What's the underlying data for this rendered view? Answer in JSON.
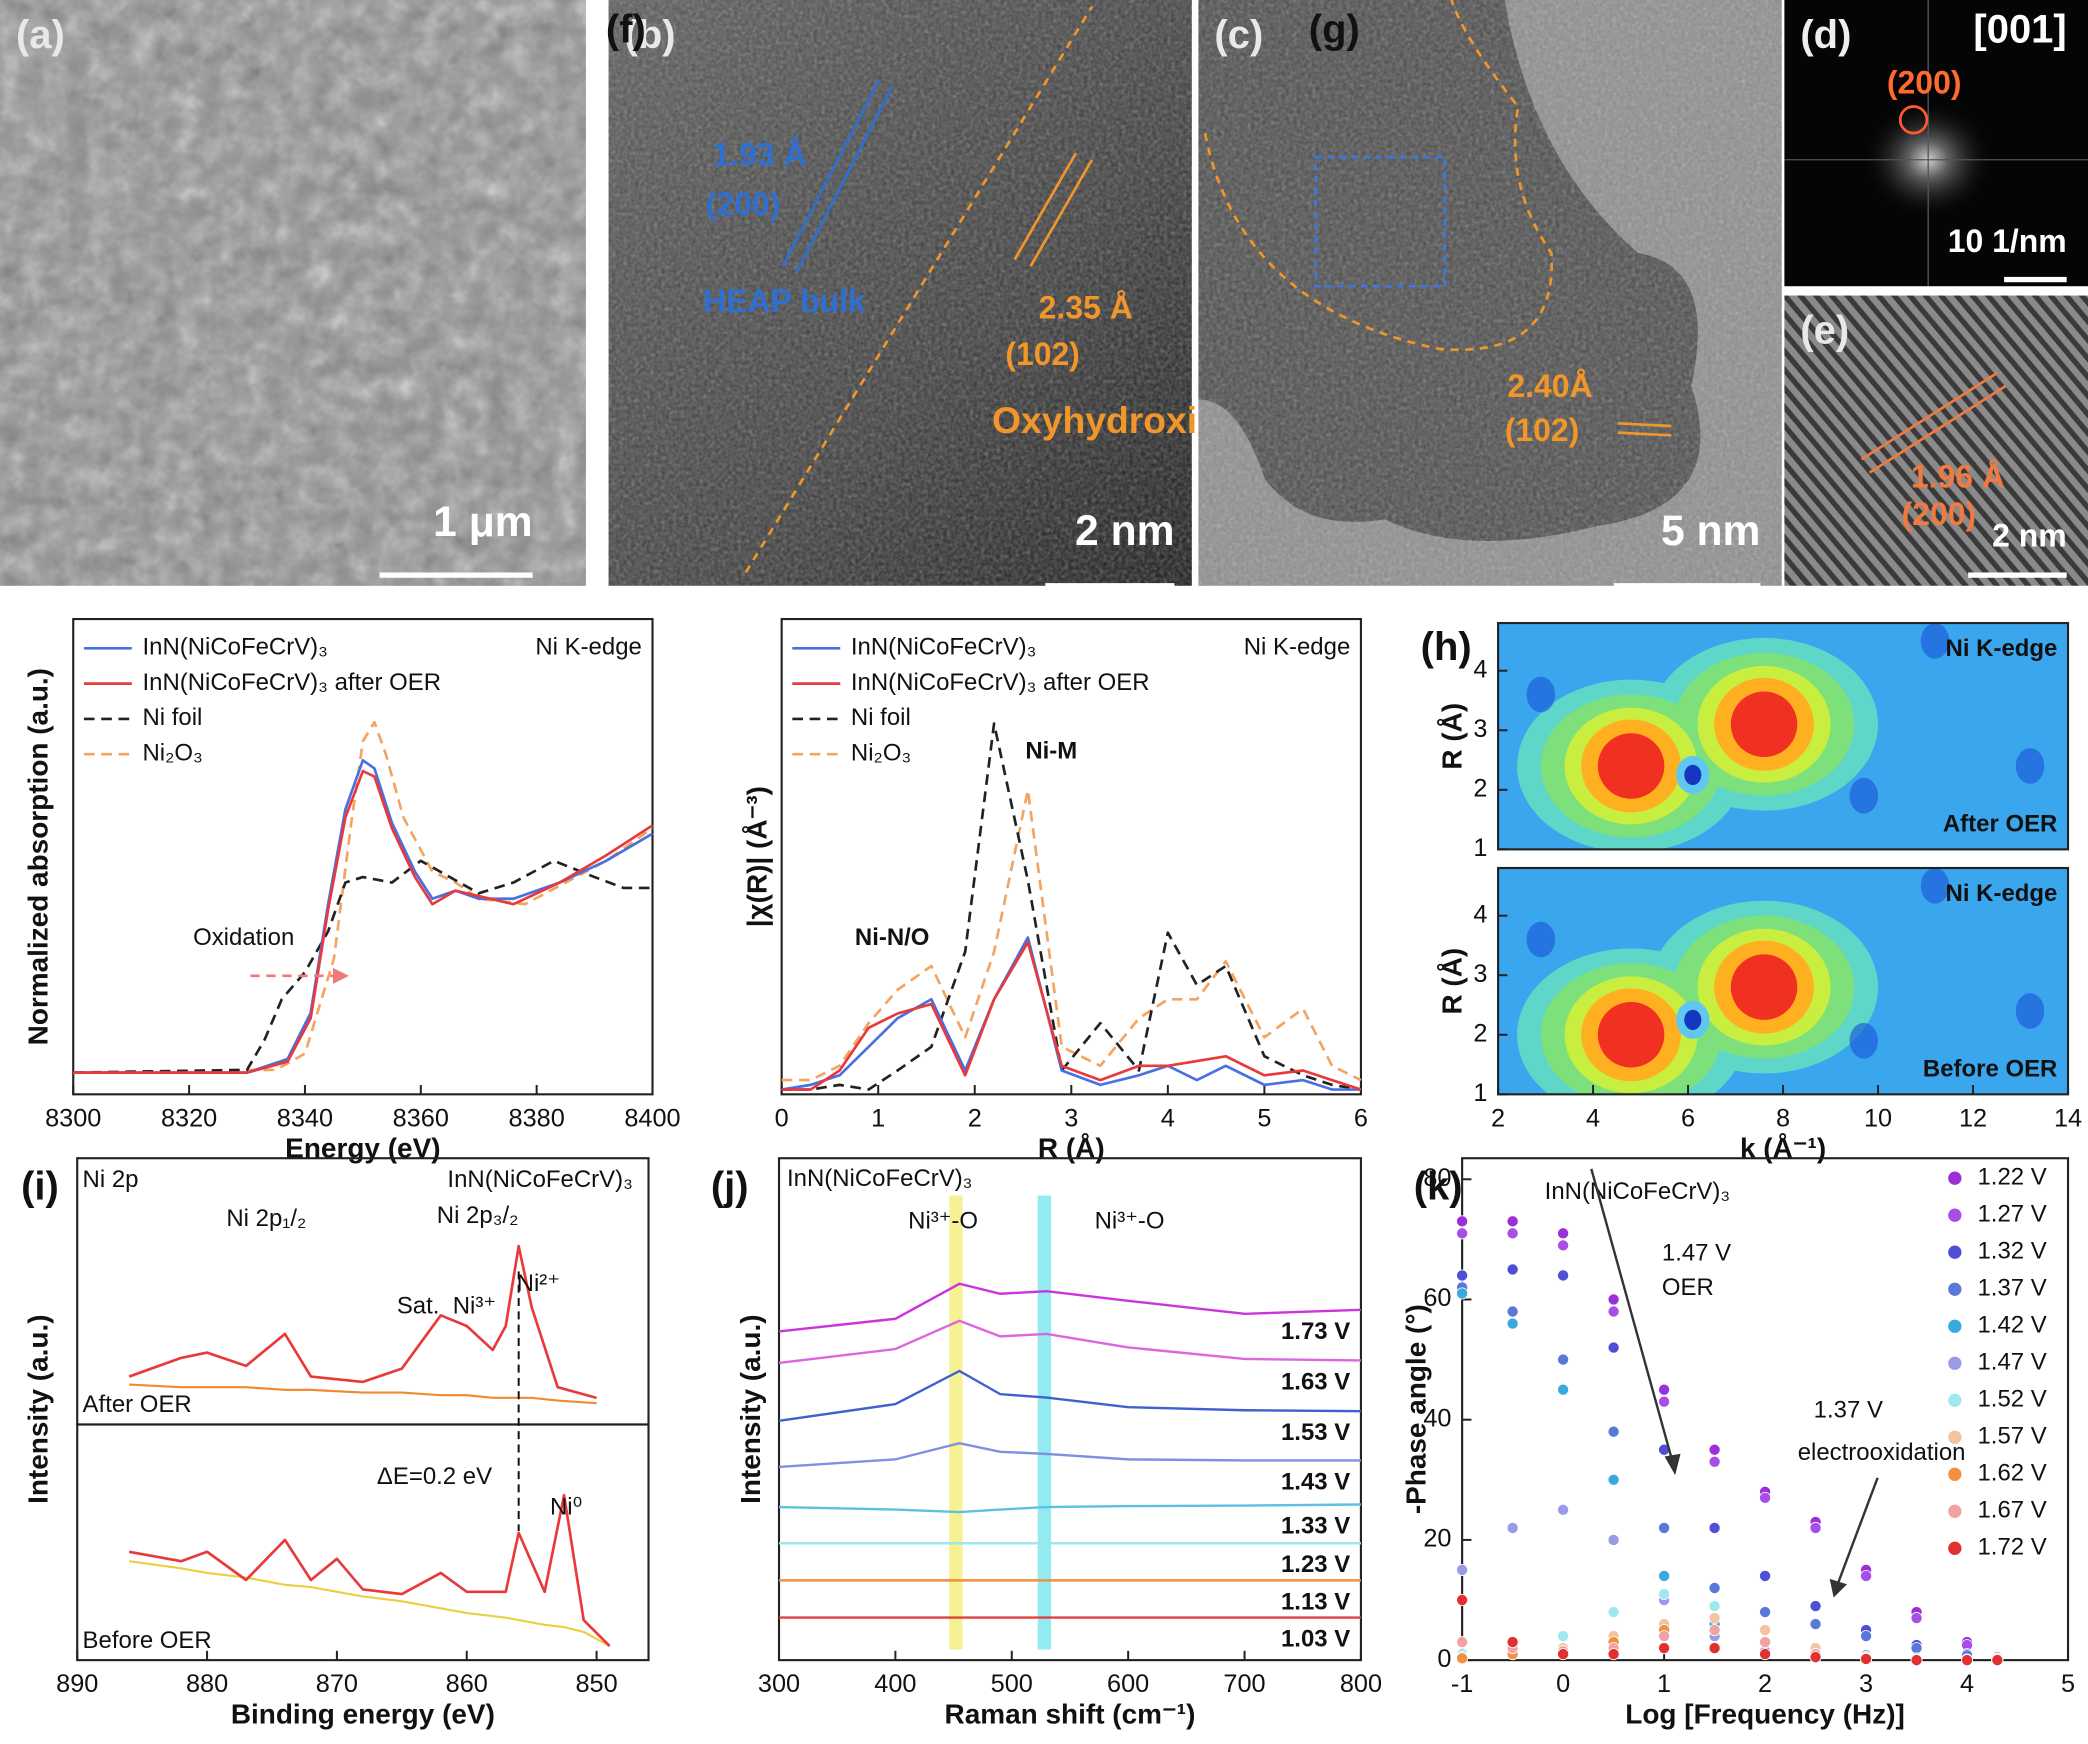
{
  "images": [
    {
      "label": "(a)",
      "scale_bar": "1 μm",
      "annotations": []
    },
    {
      "label": "(b)",
      "scale_bar": "2 nm",
      "annotations": [
        "1.93 Å",
        "(200)",
        "HEAP bulk",
        "2.35 Å",
        "(102)",
        "Oxyhydroxide"
      ]
    },
    {
      "label": "(c)",
      "scale_bar": "5 nm",
      "annotations": [
        "2.40Å",
        "(102)"
      ]
    },
    {
      "label": "(d)",
      "scale_bar": "10 1/nm",
      "annotations": [
        "[001]",
        "(200)"
      ]
    },
    {
      "label": "(e)",
      "scale_bar": "2 nm",
      "annotations": [
        "1.96 Å",
        "(200)"
      ]
    }
  ],
  "chart_data": [
    {
      "type": "line",
      "label": "(f)",
      "xlabel": "Energy (eV)",
      "ylabel": "Normalized absorption (a.u.)",
      "xlim": [
        8300,
        8400
      ],
      "xticks": [
        8300,
        8320,
        8340,
        8360,
        8380,
        8400
      ],
      "ylim": [
        0,
        1.75
      ],
      "annotations": [
        "Ni K-edge",
        "Oxidation"
      ],
      "series": [
        {
          "name": "InN(NiCoFeCrV)₃",
          "color": "#4a6fe3",
          "dashed": false,
          "x": [
            8300,
            8330,
            8337,
            8341,
            8344,
            8347,
            8350,
            8352,
            8355,
            8359,
            8362,
            8366,
            8370,
            8376,
            8384,
            8392,
            8400
          ],
          "values": [
            0.08,
            0.08,
            0.13,
            0.3,
            0.7,
            1.05,
            1.23,
            1.2,
            1.0,
            0.82,
            0.72,
            0.75,
            0.72,
            0.72,
            0.78,
            0.86,
            0.96
          ]
        },
        {
          "name": "InN(NiCoFeCrV)₃ after OER",
          "color": "#e83a3a",
          "dashed": false,
          "x": [
            8300,
            8330,
            8337,
            8341,
            8344,
            8347,
            8350,
            8352,
            8355,
            8359,
            8362,
            8366,
            8370,
            8376,
            8384,
            8392,
            8400
          ],
          "values": [
            0.08,
            0.08,
            0.12,
            0.28,
            0.68,
            1.02,
            1.19,
            1.17,
            0.98,
            0.8,
            0.7,
            0.75,
            0.73,
            0.7,
            0.78,
            0.88,
            0.99
          ]
        },
        {
          "name": "Ni foil",
          "color": "#222222",
          "dashed": true,
          "x": [
            8300,
            8330,
            8333,
            8336,
            8340,
            8344,
            8347,
            8350,
            8355,
            8360,
            8365,
            8370,
            8376,
            8383,
            8390,
            8395,
            8400
          ],
          "values": [
            0.08,
            0.09,
            0.2,
            0.35,
            0.45,
            0.6,
            0.78,
            0.8,
            0.78,
            0.86,
            0.8,
            0.74,
            0.78,
            0.86,
            0.8,
            0.76,
            0.76
          ]
        },
        {
          "name": "Ni₂O₃",
          "color": "#f4a460",
          "dashed": true,
          "x": [
            8300,
            8335,
            8340,
            8345,
            8348,
            8350,
            8352,
            8354,
            8357,
            8362,
            8366,
            8370,
            8378,
            8385,
            8392,
            8400
          ],
          "values": [
            0.08,
            0.09,
            0.15,
            0.5,
            1.0,
            1.3,
            1.37,
            1.25,
            1.02,
            0.82,
            0.78,
            0.72,
            0.7,
            0.78,
            0.86,
            0.98
          ]
        }
      ]
    },
    {
      "type": "line",
      "label": "(g)",
      "xlabel": "R (Å)",
      "ylabel": "|χ(R)| (Å⁻³)",
      "xlim": [
        0,
        6
      ],
      "xticks": [
        0,
        1,
        2,
        3,
        4,
        5,
        6
      ],
      "ylim": [
        0,
        1
      ],
      "annotations": [
        "Ni K-edge",
        "Ni-M",
        "Ni-N/O"
      ],
      "x": [
        0,
        0.3,
        0.6,
        0.9,
        1.2,
        1.55,
        1.9,
        2.2,
        2.55,
        2.9,
        3.3,
        3.7,
        4.0,
        4.3,
        4.6,
        5.0,
        5.4,
        5.7,
        6.0
      ],
      "series": [
        {
          "name": "InN(NiCoFeCrV)₃",
          "color": "#4a6fe3",
          "dashed": false,
          "values": [
            0.01,
            0.02,
            0.04,
            0.1,
            0.16,
            0.2,
            0.05,
            0.2,
            0.33,
            0.05,
            0.02,
            0.04,
            0.06,
            0.03,
            0.06,
            0.02,
            0.03,
            0.01,
            0.01
          ]
        },
        {
          "name": "InN(NiCoFeCrV)₃ after OER",
          "color": "#e83a3a",
          "dashed": false,
          "values": [
            0.01,
            0.01,
            0.05,
            0.14,
            0.17,
            0.19,
            0.04,
            0.2,
            0.32,
            0.06,
            0.03,
            0.06,
            0.06,
            0.07,
            0.08,
            0.04,
            0.05,
            0.03,
            0.01
          ]
        },
        {
          "name": "Ni foil",
          "color": "#222222",
          "dashed": true,
          "values": [
            0.01,
            0.01,
            0.02,
            0.01,
            0.05,
            0.1,
            0.3,
            0.78,
            0.45,
            0.05,
            0.15,
            0.05,
            0.34,
            0.23,
            0.27,
            0.08,
            0.04,
            0.02,
            0.01
          ]
        },
        {
          "name": "Ni₂O₃",
          "color": "#f4a460",
          "dashed": true,
          "values": [
            0.03,
            0.03,
            0.06,
            0.15,
            0.22,
            0.27,
            0.12,
            0.3,
            0.64,
            0.1,
            0.06,
            0.16,
            0.2,
            0.2,
            0.28,
            0.12,
            0.18,
            0.06,
            0.03
          ]
        }
      ]
    },
    {
      "type": "contour",
      "label": "(h)",
      "xlabel": "k (Å⁻¹)",
      "ylabel": "R (Å)",
      "xlim": [
        2,
        14
      ],
      "xticks": [
        2,
        4,
        6,
        8,
        10,
        12,
        14
      ],
      "ylim": [
        1,
        4.8
      ],
      "yticks": [
        1,
        2,
        3,
        4
      ],
      "maps": [
        {
          "title": "Ni K-edge",
          "label": "After OER",
          "hotspots": [
            {
              "k": 4.8,
              "R": 2.4,
              "intensity": 1
            },
            {
              "k": 7.6,
              "R": 3.1,
              "intensity": 1
            },
            {
              "k": 6.1,
              "R": 2.25,
              "intensity": 0
            }
          ]
        },
        {
          "title": "Ni K-edge",
          "label": "Before OER",
          "hotspots": [
            {
              "k": 4.8,
              "R": 2.0,
              "intensity": 1
            },
            {
              "k": 7.6,
              "R": 2.8,
              "intensity": 1
            },
            {
              "k": 6.1,
              "R": 2.25,
              "intensity": 0
            }
          ]
        }
      ]
    },
    {
      "type": "xps",
      "label": "(i)",
      "xlabel": "Binding energy (eV)",
      "ylabel": "Intensity (a.u.)",
      "xlim": [
        890,
        846
      ],
      "xticks": [
        890,
        880,
        870,
        860,
        850
      ],
      "annotations": [
        "Ni 2p",
        "Ni 2p₁/₂",
        "InN(NiCoFeCrV)₃",
        "Ni 2p₃/₂",
        "Sat.",
        "Ni³⁺",
        "Ni²⁺",
        "ΔE=0.2 eV",
        "Ni⁰"
      ],
      "subplots": [
        {
          "label": "After OER",
          "ylim": [
            0,
            1
          ],
          "x": [
            886,
            882,
            880,
            877,
            874,
            872,
            868,
            865,
            862,
            860,
            858,
            857,
            856,
            855,
            853,
            850
          ],
          "series": [
            {
              "color": "#f08a30",
              "values": [
                0.15,
                0.14,
                0.14,
                0.14,
                0.13,
                0.13,
                0.12,
                0.12,
                0.11,
                0.11,
                0.1,
                0.1,
                0.1,
                0.1,
                0.09,
                0.08
              ]
            },
            {
              "color": "#e83a3a",
              "values": [
                0.18,
                0.25,
                0.27,
                0.22,
                0.34,
                0.18,
                0.16,
                0.21,
                0.41,
                0.37,
                0.28,
                0.37,
                0.67,
                0.44,
                0.14,
                0.1
              ]
            }
          ]
        },
        {
          "label": "Before OER",
          "ylim": [
            0,
            1
          ],
          "x": [
            886,
            882,
            880,
            877,
            874,
            872,
            870,
            868,
            865,
            862,
            860,
            857,
            856,
            854,
            852.5,
            851,
            849
          ],
          "series": [
            {
              "color": "#e8d040",
              "values": [
                0.42,
                0.39,
                0.37,
                0.35,
                0.32,
                0.31,
                0.29,
                0.27,
                0.25,
                0.22,
                0.2,
                0.18,
                0.17,
                0.15,
                0.14,
                0.12,
                0.06
              ]
            },
            {
              "color": "#e83a3a",
              "values": [
                0.46,
                0.42,
                0.46,
                0.34,
                0.51,
                0.34,
                0.43,
                0.3,
                0.28,
                0.37,
                0.29,
                0.29,
                0.54,
                0.29,
                0.7,
                0.17,
                0.06
              ]
            }
          ]
        }
      ]
    },
    {
      "type": "raman",
      "label": "(j)",
      "title": "InN(NiCoFeCrV)₃",
      "xlabel": "Raman shift (cm⁻¹)",
      "ylabel": "Intensity (a.u.)",
      "xlim": [
        300,
        800
      ],
      "xticks": [
        300,
        400,
        500,
        600,
        700,
        800
      ],
      "ylim": [
        0,
        10
      ],
      "annotations": [
        "Ni³⁺-O",
        "Ni³⁺-O"
      ],
      "bands": [
        {
          "x": 452,
          "color": "#f5ef80"
        },
        {
          "x": 528,
          "color": "#80e8f0"
        }
      ],
      "x": [
        300,
        400,
        455,
        490,
        530,
        600,
        700,
        800
      ],
      "series": [
        {
          "name": "1.73 V",
          "color": "#cc33dd",
          "values": [
            6.55,
            6.8,
            7.5,
            7.3,
            7.35,
            7.16,
            6.9,
            6.98
          ]
        },
        {
          "name": "1.63 V",
          "color": "#dd66dd",
          "values": [
            5.92,
            6.2,
            6.76,
            6.45,
            6.5,
            6.23,
            6.0,
            5.97
          ]
        },
        {
          "name": "1.53 V",
          "color": "#4060d0",
          "values": [
            4.77,
            5.1,
            5.76,
            5.3,
            5.23,
            5.04,
            4.98,
            4.96
          ]
        },
        {
          "name": "1.43 V",
          "color": "#8090e0",
          "values": [
            3.85,
            4.0,
            4.32,
            4.15,
            4.11,
            4.0,
            3.98,
            3.98
          ]
        },
        {
          "name": "1.33 V",
          "color": "#60c0e0",
          "values": [
            3.05,
            3.0,
            2.95,
            3.0,
            3.05,
            3.07,
            3.08,
            3.1
          ]
        },
        {
          "name": "1.23 V",
          "color": "#9be8ef",
          "values": [
            2.33,
            2.33,
            2.33,
            2.33,
            2.33,
            2.33,
            2.33,
            2.33
          ]
        },
        {
          "name": "1.13 V",
          "color": "#f09040",
          "values": [
            1.59,
            1.59,
            1.59,
            1.59,
            1.59,
            1.59,
            1.59,
            1.59
          ]
        },
        {
          "name": "1.03 V",
          "color": "#e04040",
          "values": [
            0.85,
            0.85,
            0.85,
            0.85,
            0.85,
            0.85,
            0.85,
            0.85
          ]
        }
      ]
    },
    {
      "type": "scatter",
      "label": "(k)",
      "title": "InN(NiCoFeCrV)₃",
      "xlabel": "Log [Frequency (Hz)]",
      "ylabel": "-Phase angle (°)",
      "xlim": [
        -1,
        5
      ],
      "xticks": [
        -1,
        0,
        1,
        2,
        3,
        4,
        5
      ],
      "ylim": [
        0,
        83.5
      ],
      "yticks": [
        0,
        20,
        40,
        60,
        80
      ],
      "annotations": [
        "1.47 V",
        "OER",
        "1.37 V",
        "electrooxidation"
      ],
      "x": [
        -1,
        -0.5,
        0,
        0.5,
        1,
        1.5,
        2,
        2.5,
        3,
        3.5,
        4,
        4.3
      ],
      "series": [
        {
          "name": "1.22 V",
          "color": "#9b30d9",
          "values": [
            73,
            73,
            71,
            60,
            45,
            35,
            28,
            23,
            15,
            8,
            3,
            0.5
          ]
        },
        {
          "name": "1.27 V",
          "color": "#a84ee6",
          "values": [
            71,
            71,
            69,
            58,
            43,
            33,
            27,
            22,
            14,
            7,
            2.5,
            0.5
          ]
        },
        {
          "name": "1.32 V",
          "color": "#4f4fd6",
          "values": [
            64,
            65,
            64,
            52,
            35,
            22,
            14,
            9,
            5,
            2.5,
            1,
            0.3
          ]
        },
        {
          "name": "1.37 V",
          "color": "#5a78d8",
          "values": [
            62,
            58,
            50,
            38,
            22,
            12,
            8,
            6,
            4,
            2,
            0.8,
            0.2
          ]
        },
        {
          "name": "1.42 V",
          "color": "#3ba8e0",
          "values": [
            61,
            56,
            45,
            30,
            14,
            6,
            3,
            1.5,
            0.8,
            0.3,
            0.1,
            0
          ]
        },
        {
          "name": "1.47 V",
          "color": "#9a9ae6",
          "values": [
            15,
            22,
            25,
            20,
            10,
            4,
            1.5,
            0.5,
            0.2,
            0,
            0,
            0
          ]
        },
        {
          "name": "1.52 V",
          "color": "#a0e8f0",
          "values": [
            1,
            2,
            4,
            8,
            11,
            9,
            5,
            2,
            0.5,
            0.1,
            0,
            0
          ]
        },
        {
          "name": "1.57 V",
          "color": "#f2c4a2",
          "values": [
            0.5,
            1,
            2,
            4,
            6,
            7,
            5,
            2,
            0.5,
            0.1,
            0,
            0
          ]
        },
        {
          "name": "1.62 V",
          "color": "#f09040",
          "values": [
            0.3,
            1,
            1.5,
            3,
            5,
            5,
            3,
            1,
            0.3,
            0,
            0,
            0
          ]
        },
        {
          "name": "1.67 V",
          "color": "#f2a2a2",
          "values": [
            3,
            2,
            1.5,
            2,
            4,
            5,
            3,
            1,
            0.3,
            0,
            0,
            0
          ]
        },
        {
          "name": "1.72 V",
          "color": "#e03030",
          "values": [
            10,
            3,
            1,
            1,
            2,
            2,
            1,
            0.5,
            0.2,
            0,
            0,
            0
          ]
        }
      ]
    }
  ]
}
